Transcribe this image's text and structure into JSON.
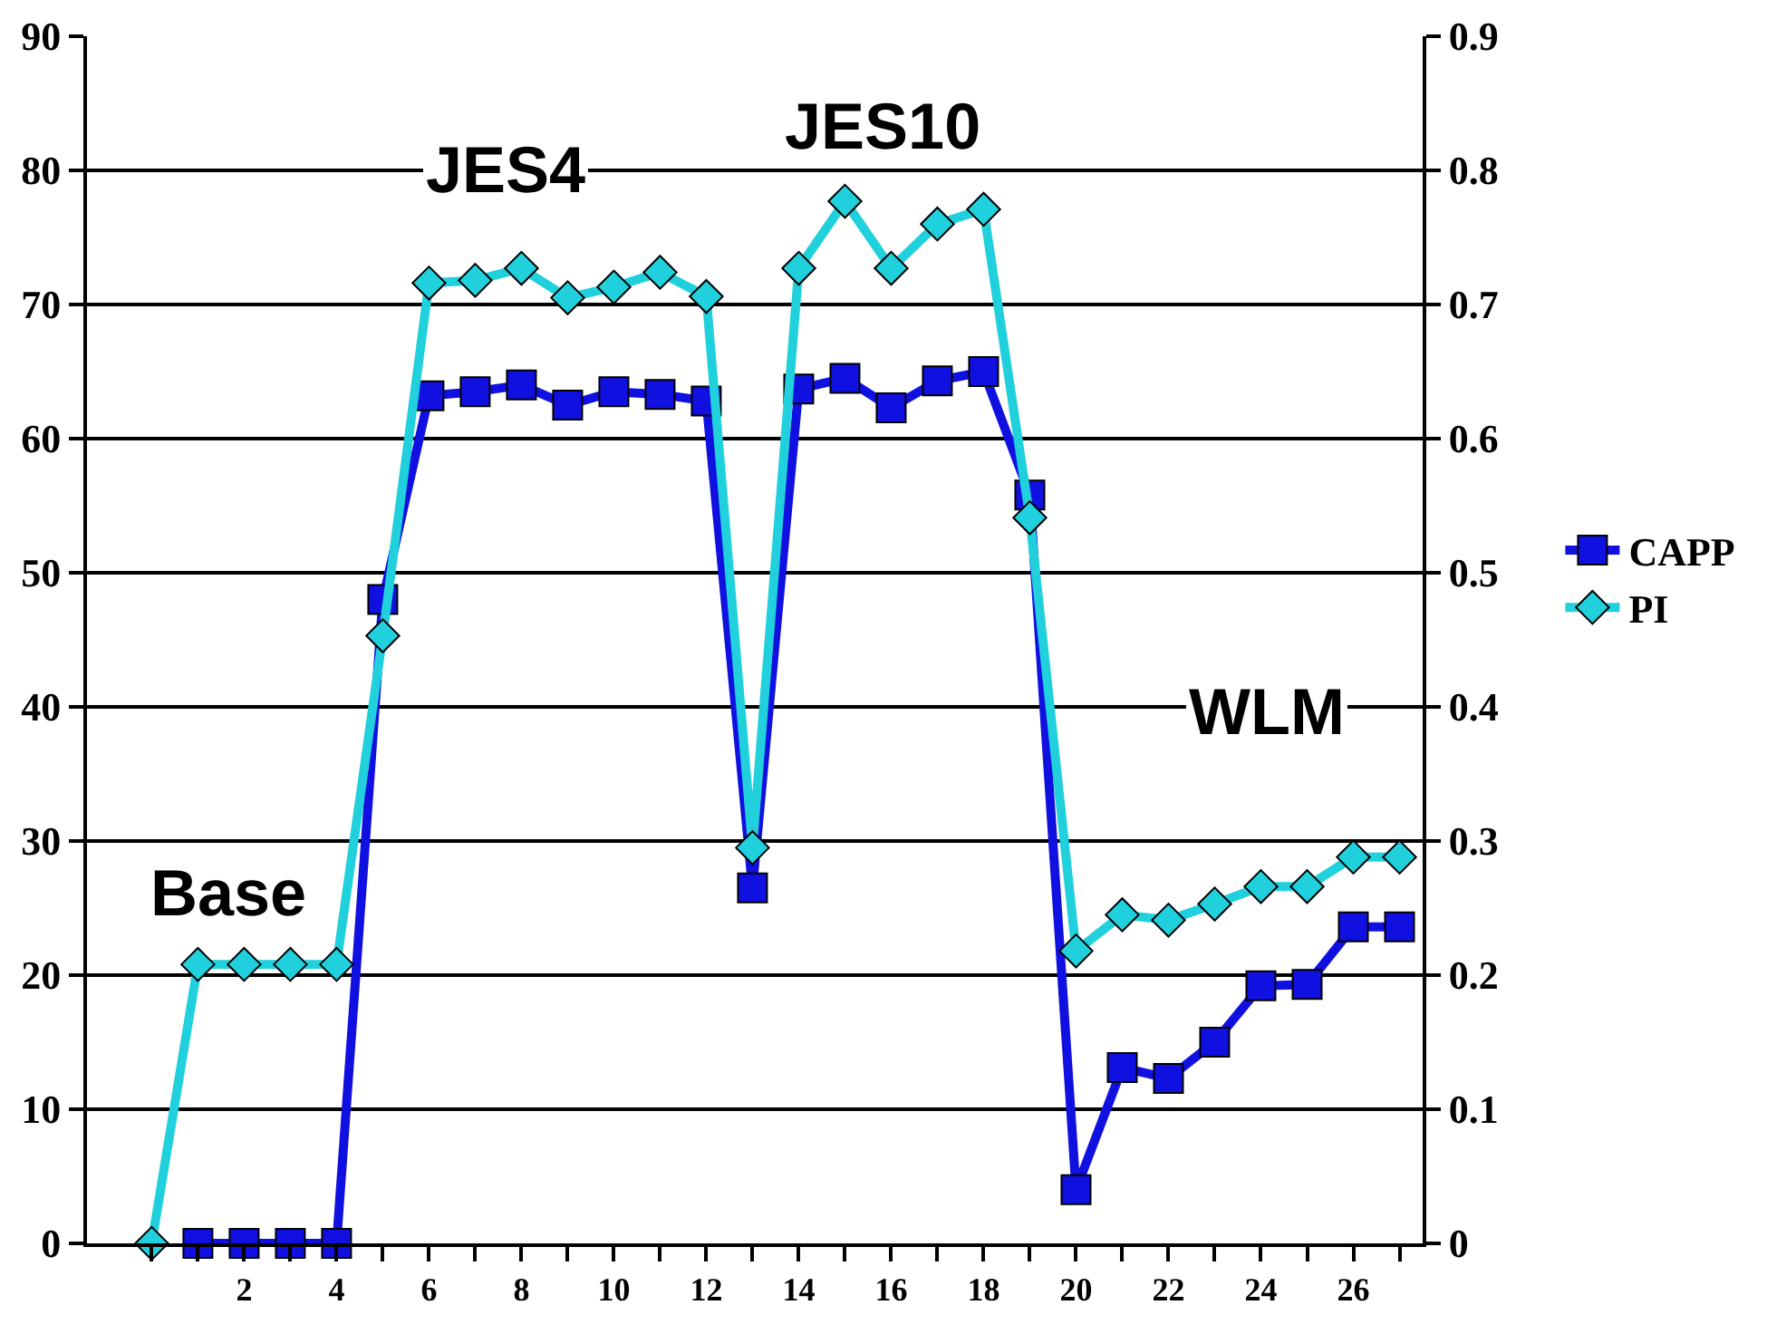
{
  "chart_data": {
    "type": "line",
    "x": [
      0,
      1,
      2,
      3,
      4,
      5,
      6,
      7,
      8,
      9,
      10,
      11,
      12,
      13,
      14,
      15,
      16,
      17,
      18,
      19,
      20,
      21,
      22,
      23,
      24,
      25,
      26,
      27
    ],
    "series": [
      {
        "name": "CAPP",
        "color": "#1010e0",
        "marker": "square",
        "x": [
          1,
          2,
          3,
          4,
          5,
          6,
          7,
          8,
          9,
          10,
          11,
          12,
          13,
          14,
          15,
          16,
          17,
          18,
          19,
          20,
          21,
          22,
          23,
          24,
          25,
          26,
          27
        ],
        "values": [
          0,
          0,
          0,
          0,
          48,
          63.2,
          63.5,
          64,
          62.5,
          63.5,
          63.3,
          62.8,
          26.5,
          63.7,
          64.5,
          62.3,
          64.3,
          65,
          55.8,
          4,
          13.1,
          12.3,
          15,
          19.2,
          19.3,
          23.6,
          23.6
        ]
      },
      {
        "name": "PI",
        "color": "#20d0dc",
        "marker": "diamond",
        "axis": "y2",
        "values": [
          0,
          0.208,
          0.208,
          0.208,
          0.208,
          0.453,
          0.716,
          0.718,
          0.727,
          0.705,
          0.713,
          0.724,
          0.706,
          0.295,
          0.727,
          0.777,
          0.727,
          0.76,
          0.771,
          0.541,
          0.218,
          0.245,
          0.241,
          0.253,
          0.266,
          0.266,
          0.288,
          0.288
        ]
      }
    ],
    "xlim": [
      -1.4,
      27.5
    ],
    "xticks": [
      {
        "value": 0,
        "label": null
      },
      {
        "value": 1,
        "label": null
      },
      2,
      {
        "value": 3,
        "label": null
      },
      4,
      {
        "value": 5,
        "label": null
      },
      6,
      {
        "value": 7,
        "label": null
      },
      8,
      {
        "value": 9,
        "label": null
      },
      10,
      {
        "value": 11,
        "label": null
      },
      12,
      {
        "value": 13,
        "label": null
      },
      14,
      {
        "value": 15,
        "label": null
      },
      16,
      {
        "value": 17,
        "label": null
      },
      18,
      {
        "value": 19,
        "label": null
      },
      20,
      {
        "value": 21,
        "label": null
      },
      22,
      {
        "value": 23,
        "label": null
      },
      24,
      {
        "value": 25,
        "label": null
      },
      26,
      {
        "value": 27,
        "label": null
      }
    ],
    "ylim": [
      0,
      90
    ],
    "yticks": [
      0,
      10,
      20,
      30,
      40,
      50,
      60,
      70,
      80,
      90
    ],
    "y2lim": [
      0,
      0.9
    ],
    "y2ticks": [
      0,
      0.1,
      0.2,
      0.3,
      0.4,
      0.5,
      0.6,
      0.7,
      0.8,
      0.9
    ],
    "grid": "y",
    "legend": "right",
    "line_style": "solid",
    "annotations": [
      "Base",
      "JES4",
      "JES10",
      "WLM"
    ]
  }
}
